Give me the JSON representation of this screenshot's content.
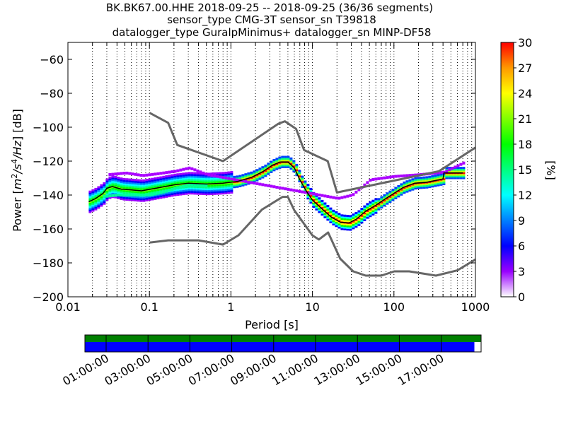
{
  "chart_data": {
    "type": "heatmap",
    "title": [
      "BK.BK67.00.HHE   2018-09-25 -- 2018-09-25  (36/36 segments)",
      "sensor_type CMG-3T sensor_sn T39818",
      "datalogger_type GuralpMinimus+ datalogger_sn MINP-DF58"
    ],
    "xlabel": "Period [s]",
    "ylabel": "Power [m²/s⁴/Hz] [dB]",
    "x_scale": "log",
    "xlim": [
      0.01,
      1000
    ],
    "ylim": [
      -200,
      -50
    ],
    "x_ticks": [
      {
        "value": 0.01,
        "label": "0.01"
      },
      {
        "value": 0.1,
        "label": "0.1"
      },
      {
        "value": 1,
        "label": "1"
      },
      {
        "value": 10,
        "label": "10"
      },
      {
        "value": 100,
        "label": "100"
      },
      {
        "value": 1000,
        "label": "1000"
      }
    ],
    "y_ticks": [
      {
        "value": -60,
        "label": "−60"
      },
      {
        "value": -80,
        "label": "−80"
      },
      {
        "value": -100,
        "label": "−100"
      },
      {
        "value": -120,
        "label": "−120"
      },
      {
        "value": -140,
        "label": "−140"
      },
      {
        "value": -160,
        "label": "−160"
      },
      {
        "value": -180,
        "label": "−180"
      },
      {
        "value": -200,
        "label": "−200"
      }
    ],
    "grid": "dotted vertical lines",
    "colorbar": {
      "label": "[%]",
      "range": [
        0,
        30
      ],
      "ticks": [
        {
          "value": 0,
          "label": "0"
        },
        {
          "value": 3,
          "label": "3"
        },
        {
          "value": 6,
          "label": "6"
        },
        {
          "value": 9,
          "label": "9"
        },
        {
          "value": 12,
          "label": "12"
        },
        {
          "value": 15,
          "label": "15"
        },
        {
          "value": 18,
          "label": "18"
        },
        {
          "value": 21,
          "label": "21"
        },
        {
          "value": 24,
          "label": "24"
        },
        {
          "value": 27,
          "label": "27"
        },
        {
          "value": 30,
          "label": "30"
        }
      ],
      "stops": [
        "#ffffff",
        "#9900ff",
        "#0000ff",
        "#00ffff",
        "#00ff00",
        "#ffff00",
        "#ff9900",
        "#ff0000"
      ]
    },
    "nhnm": [
      [
        0.1,
        -91.5
      ],
      [
        0.17,
        -97.4
      ],
      [
        0.22,
        -110.5
      ],
      [
        0.8,
        -120
      ],
      [
        3.8,
        -98
      ],
      [
        4.6,
        -96.5
      ],
      [
        6.3,
        -101
      ],
      [
        7.9,
        -113.5
      ],
      [
        15.4,
        -120
      ],
      [
        20,
        -138.5
      ],
      [
        354.8,
        -126
      ],
      [
        1000,
        -112
      ]
    ],
    "nlnm": [
      [
        0.1,
        -168
      ],
      [
        0.17,
        -166.7
      ],
      [
        0.4,
        -166.7
      ],
      [
        0.8,
        -169.2
      ],
      [
        1.24,
        -163.7
      ],
      [
        2.4,
        -148.6
      ],
      [
        4.3,
        -141.1
      ],
      [
        5,
        -141.1
      ],
      [
        6,
        -149
      ],
      [
        10,
        -163.8
      ],
      [
        12,
        -166.2
      ],
      [
        15.6,
        -162.1
      ],
      [
        21.9,
        -177.5
      ],
      [
        31.6,
        -185
      ],
      [
        45,
        -187.5
      ],
      [
        70,
        -187.5
      ],
      [
        101,
        -185
      ],
      [
        154,
        -185
      ],
      [
        328,
        -187.5
      ],
      [
        600,
        -184.4
      ],
      [
        1000,
        -178
      ]
    ],
    "mode_curve": [
      [
        0.018,
        -144
      ],
      [
        0.022,
        -142
      ],
      [
        0.027,
        -139
      ],
      [
        0.03,
        -136
      ],
      [
        0.035,
        -135
      ],
      [
        0.045,
        -136.5
      ],
      [
        0.06,
        -137
      ],
      [
        0.08,
        -137.5
      ],
      [
        0.12,
        -136
      ],
      [
        0.2,
        -134
      ],
      [
        0.3,
        -133
      ],
      [
        0.5,
        -133.5
      ],
      [
        0.8,
        -133
      ],
      [
        1.2,
        -132
      ],
      [
        1.8,
        -129.5
      ],
      [
        2.5,
        -126
      ],
      [
        3.2,
        -122.5
      ],
      [
        4,
        -120.5
      ],
      [
        5,
        -120.5
      ],
      [
        6,
        -124
      ],
      [
        7,
        -131
      ],
      [
        8.5,
        -138
      ],
      [
        10,
        -143
      ],
      [
        13,
        -148
      ],
      [
        17,
        -153
      ],
      [
        22,
        -156
      ],
      [
        28,
        -156.5
      ],
      [
        35,
        -154
      ],
      [
        45,
        -149.5
      ],
      [
        60,
        -146
      ],
      [
        80,
        -142
      ],
      [
        100,
        -139
      ],
      [
        130,
        -135.5
      ],
      [
        180,
        -133
      ],
      [
        250,
        -132.5
      ],
      [
        400,
        -130.5
      ],
      [
        410,
        -127
      ],
      [
        700,
        -127
      ]
    ],
    "spread_curves": [
      {
        "offsets": [
          -5,
          -4,
          -3,
          -2,
          -1,
          1,
          2,
          3,
          4,
          5
        ],
        "periods": [
          0.018,
          0.022,
          0.027,
          0.03,
          0.035,
          0.045,
          0.06,
          0.08,
          0.12,
          0.2,
          0.3,
          0.5,
          0.8,
          1.2,
          1.8,
          2.5,
          3.2,
          4,
          5,
          6,
          7,
          8.5,
          10,
          13,
          17,
          22,
          28,
          35,
          45,
          60,
          80,
          100,
          130,
          180,
          250,
          400,
          410,
          700
        ]
      }
    ],
    "purple_upper": [
      [
        0.03,
        -128
      ],
      [
        0.05,
        -127
      ],
      [
        0.08,
        -128.5
      ],
      [
        0.12,
        -127.5
      ],
      [
        0.2,
        -126
      ],
      [
        0.3,
        -124
      ],
      [
        0.5,
        -128
      ],
      [
        20,
        -142
      ],
      [
        30,
        -140
      ],
      [
        50,
        -131
      ],
      [
        100,
        -129
      ],
      [
        200,
        -128
      ],
      [
        400,
        -126.5
      ],
      [
        700,
        -121
      ]
    ],
    "cyan_lower": [
      [
        0.025,
        -141
      ],
      [
        0.04,
        -140
      ],
      [
        0.07,
        -140
      ],
      [
        0.1,
        -140
      ],
      [
        0.15,
        -138
      ],
      [
        0.2,
        -136
      ],
      [
        0.3,
        -134
      ],
      [
        0.5,
        -134.5
      ]
    ],
    "time_axis": {
      "labels": [
        "01:00:00",
        "03:00:00",
        "05:00:00",
        "07:00:00",
        "09:00:00",
        "11:00:00",
        "13:00:00",
        "15:00:00",
        "17:00:00"
      ],
      "data_coverage_fraction": 0.983,
      "top_bar_color": "#008000",
      "bottom_bar_color": "#0000ff"
    }
  }
}
